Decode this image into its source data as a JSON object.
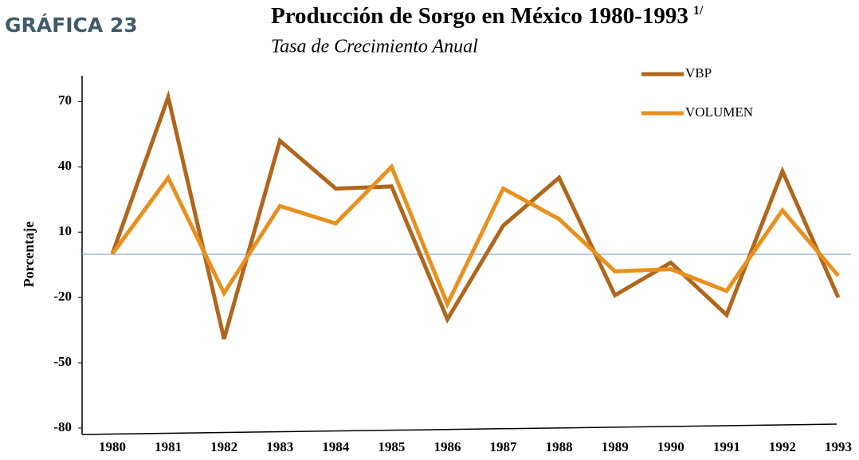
{
  "figure_label": "GRÁFICA 23",
  "chart_data": {
    "type": "line",
    "title": "Producción de Sorgo  en México 1980-1993",
    "title_note": "1/",
    "subtitle": "Tasa de Crecimiento Anual",
    "y_label": "Porcentaje",
    "categories": [
      "1980",
      "1981",
      "1982",
      "1983",
      "1984",
      "1985",
      "1986",
      "1987",
      "1988",
      "1989",
      "1990",
      "1991",
      "1992",
      "1993"
    ],
    "series": [
      {
        "name": "VBP",
        "color": "#b0661c",
        "values": [
          0,
          72,
          -39,
          52,
          30,
          31,
          -30,
          13,
          35,
          -19,
          -4,
          -28,
          38,
          -20
        ]
      },
      {
        "name": "VOLUMEN",
        "color": "#e8901e",
        "values": [
          0,
          35,
          -18,
          22,
          14,
          40,
          -23,
          30,
          16,
          -8,
          -7,
          -17,
          20,
          -10
        ]
      }
    ],
    "ylim": [
      -80,
      80
    ],
    "yticks": [
      -80,
      -50,
      -20,
      10,
      40,
      70
    ],
    "grid": false
  }
}
